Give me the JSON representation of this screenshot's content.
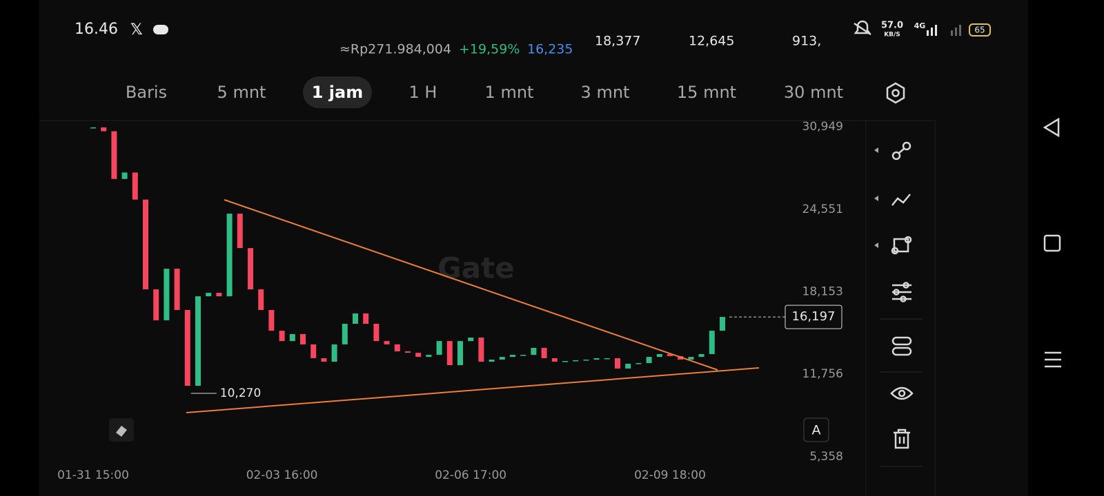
{
  "status_bar": {
    "time": "16.46",
    "speed": "57.0",
    "speed_unit": "KB/S",
    "network": "4G",
    "battery": "65"
  },
  "ticker": {
    "price_idr": "≈Rp271.984,004",
    "change": "+19,59%",
    "last": "16,235",
    "stats": [
      "18,377",
      "12,645",
      "913,"
    ]
  },
  "tabs": [
    "Baris",
    "5 mnt",
    "1 jam",
    "1 H",
    "1 mnt",
    "3 mnt",
    "15 mnt",
    "30 mnt"
  ],
  "active_tab": 2,
  "chart_data": {
    "type": "candlestick",
    "watermark": "Gate",
    "categories": [
      "01-31 15:00",
      null,
      null,
      null,
      null,
      null,
      null,
      null,
      null,
      null,
      null,
      null,
      null,
      null,
      null,
      null,
      null,
      null,
      "02-03 16:00",
      null,
      null,
      null,
      null,
      null,
      null,
      null,
      null,
      null,
      null,
      null,
      null,
      null,
      null,
      null,
      null,
      null,
      "02-06 17:00",
      null,
      null,
      null,
      null,
      null,
      null,
      null,
      null,
      null,
      null,
      null,
      null,
      null,
      null,
      null,
      null,
      null,
      null,
      "02-09 18:00",
      null,
      null,
      null,
      null,
      null
    ],
    "values": [
      30900,
      30600,
      26900,
      27400,
      25300,
      18340,
      15940,
      19940,
      16740,
      10860,
      17800,
      18070,
      17800,
      24210,
      21540,
      18340,
      16740,
      15130,
      14330,
      14870,
      14070,
      13000,
      12730,
      14070,
      15670,
      16470,
      15670,
      14330,
      14070,
      13530,
      13420,
      13100,
      13260,
      14330,
      12460,
      14330,
      14600,
      12730,
      12890,
      13100,
      13260,
      13260,
      13800,
      13000,
      12730,
      12780,
      12840,
      12890,
      13000,
      13000,
      12200,
      12570,
      12620,
      13100,
      13320,
      13160,
      12890,
      13100,
      13320,
      15130,
      16200
    ],
    "up_color": "#2ebd85",
    "down_color": "#f6465d",
    "ylim": [
      5358,
      30949
    ],
    "yticks": [
      {
        "value": 5358,
        "label": "5,358"
      },
      {
        "value": 11756,
        "label": "11,756"
      },
      {
        "value": 18153,
        "label": "18,153"
      },
      {
        "value": 24551,
        "label": "24,551"
      },
      {
        "value": 30949,
        "label": "30,949"
      }
    ],
    "grid": false,
    "low_marker": {
      "value": 10270,
      "label": "10,270"
    },
    "last_price": {
      "value": 16197,
      "label": "16,197"
    }
  }
}
